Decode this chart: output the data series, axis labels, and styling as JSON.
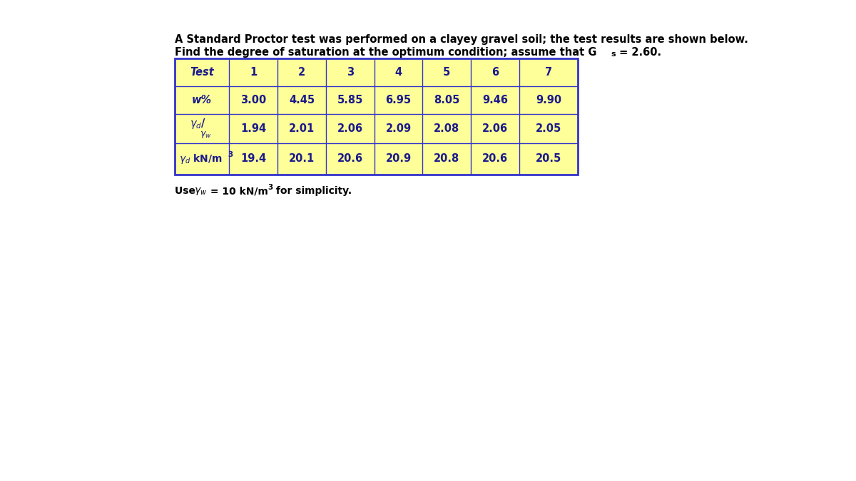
{
  "title_line1": "A Standard Proctor test was performed on a clayey gravel soil; the test results are shown below.",
  "title_line2_part1": "Find the degree of saturation at the optimum condition; assume that G",
  "title_line2_part2": " = 2.60.",
  "col_headers": [
    "Test",
    "1",
    "2",
    "3",
    "4",
    "5",
    "6",
    "7"
  ],
  "row1_label": "w%",
  "row1_values": [
    "3.00",
    "4.45",
    "5.85",
    "6.95",
    "8.05",
    "9.46",
    "9.90"
  ],
  "row2_values": [
    "1.94",
    "2.01",
    "2.06",
    "2.09",
    "2.08",
    "2.06",
    "2.05"
  ],
  "row3_values": [
    "19.4",
    "20.1",
    "20.6",
    "20.9",
    "20.8",
    "20.6",
    "20.5"
  ],
  "table_bg": "#FFFF99",
  "table_border": "#3333CC",
  "text_color": "#1a1a8c",
  "bg_color": "#ffffff",
  "title_color": "#000000"
}
